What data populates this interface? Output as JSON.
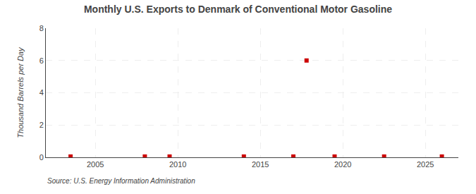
{
  "chart_data": {
    "type": "scatter",
    "title": "Monthly U.S. Exports to Denmark of Conventional Motor Gasoline",
    "ylabel": "Thousand Barrels per Day",
    "source": "Source: U.S. Energy Information Administration",
    "x": [
      2003.5,
      2008.0,
      2009.5,
      2014.0,
      2017.0,
      2017.8,
      2019.5,
      2022.5,
      2026.0
    ],
    "values": [
      0.05,
      0.05,
      0.05,
      0.05,
      0.05,
      6.0,
      0.05,
      0.05,
      0.05
    ],
    "color": "#CC0000",
    "marker": "square",
    "xlim": [
      2002.0,
      2027.0
    ],
    "ylim": [
      0,
      8
    ],
    "xticks": [
      2005,
      2010,
      2015,
      2020,
      2025
    ],
    "yticks": [
      0,
      2,
      4,
      6,
      8
    ],
    "grid": true
  }
}
